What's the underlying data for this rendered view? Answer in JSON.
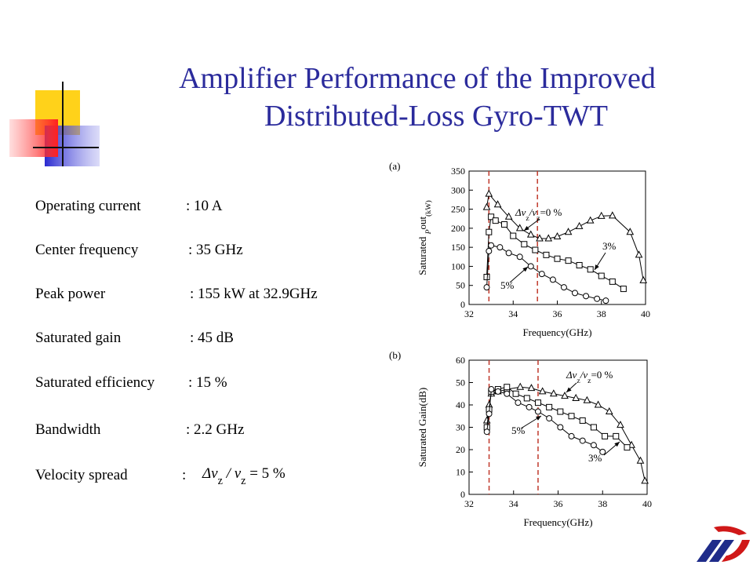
{
  "title": [
    "Amplifier Performance of the Improved",
    "Distributed-Loss Gyro-TWT"
  ],
  "specs": [
    {
      "label": "Operating current",
      "value": ": 10 A"
    },
    {
      "label": "Center frequency",
      "value": ": 35 GHz"
    },
    {
      "label": "Peak power",
      "value": ": 155 kW at 32.9GHz"
    },
    {
      "label": "Saturated gain",
      "value": ": 45 dB"
    },
    {
      "label": "Saturated efficiency",
      "value": ": 15 %"
    },
    {
      "label": "Bandwidth",
      "value": ": 2.2 GHz"
    },
    {
      "label": "Velocity spread",
      "value": ":",
      "formula": [
        "Δv",
        "z",
        " / v",
        "z",
        " = 5 %"
      ]
    }
  ],
  "chart_data": [
    {
      "type": "line",
      "panel": "(a)",
      "xlabel": "Frequency(GHz)",
      "ylabel": [
        "Saturated ",
        "P",
        "out",
        "(kW)"
      ],
      "xlim": [
        32,
        40
      ],
      "xticks": [
        32,
        34,
        36,
        38,
        40
      ],
      "ylim": [
        0,
        350
      ],
      "yticks": [
        0,
        50,
        100,
        150,
        200,
        250,
        300,
        350
      ],
      "reference_lines": [
        32.9,
        35.1
      ],
      "reference_color": "#c0392b",
      "annotations": [
        [
          "Δv",
          "z",
          "/v",
          "z",
          "=0 %"
        ],
        [
          "3%"
        ],
        [
          "5%"
        ]
      ],
      "series": [
        {
          "marker": "triangle",
          "color": "#000000",
          "x": [
            32.8,
            32.9,
            33.3,
            33.8,
            34.3,
            34.8,
            35.2,
            35.6,
            36.0,
            36.5,
            37.0,
            37.5,
            38.0,
            38.5,
            39.3,
            39.7,
            39.9
          ],
          "values": [
            255,
            290,
            262,
            230,
            200,
            183,
            173,
            173,
            178,
            190,
            205,
            220,
            232,
            233,
            190,
            130,
            63
          ]
        },
        {
          "marker": "square",
          "color": "#000000",
          "x": [
            32.8,
            32.9,
            33.0,
            33.2,
            33.6,
            34.0,
            34.5,
            35.0,
            35.5,
            36.0,
            36.5,
            37.0,
            37.5,
            38.0,
            38.5,
            39.0
          ],
          "values": [
            72,
            190,
            230,
            220,
            210,
            180,
            158,
            143,
            130,
            120,
            115,
            103,
            92,
            75,
            60,
            41
          ]
        },
        {
          "marker": "circle",
          "color": "#000000",
          "x": [
            32.8,
            32.9,
            33.0,
            33.4,
            33.8,
            34.3,
            34.8,
            35.3,
            35.8,
            36.3,
            36.8,
            37.3,
            37.8,
            38.2
          ],
          "values": [
            45,
            140,
            155,
            150,
            135,
            125,
            100,
            80,
            65,
            45,
            30,
            22,
            15,
            10
          ]
        }
      ]
    },
    {
      "type": "line",
      "panel": "(b)",
      "xlabel": "Frequency(GHz)",
      "ylabel": [
        "Saturated Gain(dB)"
      ],
      "xlim": [
        32,
        40
      ],
      "xticks": [
        32,
        34,
        36,
        38,
        40
      ],
      "ylim": [
        0,
        60
      ],
      "yticks": [
        0,
        10,
        20,
        30,
        40,
        50,
        60
      ],
      "reference_lines": [
        32.9,
        35.1
      ],
      "reference_color": "#c0392b",
      "annotations": [
        [
          "Δv",
          "z",
          "/v",
          "z",
          "=0 %"
        ],
        [
          "5%"
        ],
        [
          "3%"
        ]
      ],
      "series": [
        {
          "marker": "triangle",
          "color": "#000000",
          "x": [
            32.8,
            32.9,
            33.0,
            33.3,
            33.7,
            34.3,
            34.8,
            35.3,
            35.8,
            36.3,
            36.8,
            37.3,
            37.8,
            38.3,
            38.8,
            39.3,
            39.7,
            39.9
          ],
          "values": [
            33,
            40,
            45,
            46,
            47,
            48,
            47.5,
            46,
            45,
            44,
            43,
            42,
            40,
            37,
            31,
            22,
            15,
            6
          ]
        },
        {
          "marker": "square",
          "color": "#000000",
          "x": [
            32.8,
            32.9,
            33.0,
            33.3,
            33.7,
            34.1,
            34.6,
            35.1,
            35.6,
            36.1,
            36.6,
            37.1,
            37.6,
            38.1,
            38.6,
            39.1
          ],
          "values": [
            30,
            38,
            46,
            47,
            48,
            45,
            43,
            41,
            39,
            37,
            35,
            33,
            30,
            26,
            26,
            21
          ]
        },
        {
          "marker": "circle",
          "color": "#000000",
          "x": [
            32.8,
            32.9,
            33.0,
            33.3,
            33.7,
            34.2,
            34.7,
            35.1,
            35.6,
            36.1,
            36.6,
            37.1,
            37.6,
            38.0
          ],
          "values": [
            28,
            36,
            47,
            46,
            45,
            41,
            39,
            37,
            34,
            30,
            26,
            24,
            22,
            19
          ]
        }
      ]
    }
  ]
}
